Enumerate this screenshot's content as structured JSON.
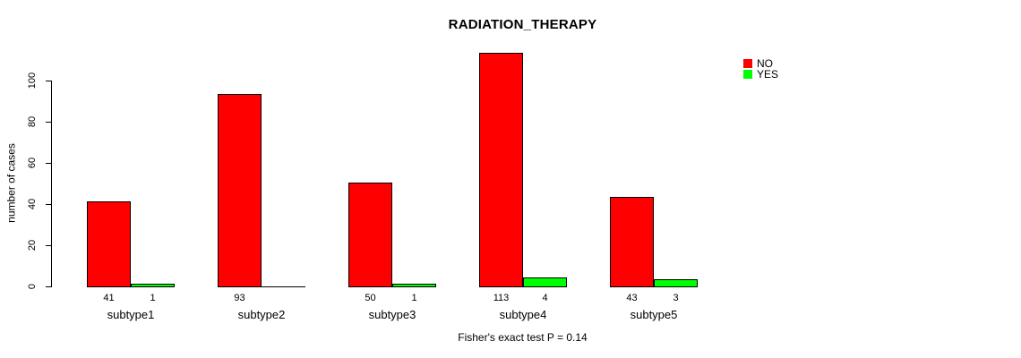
{
  "chart_data": {
    "type": "bar",
    "title": "RADIATION_THERAPY",
    "ylabel": "number of cases",
    "xlabel": "",
    "footnote": "Fisher's exact test P = 0.14",
    "categories": [
      "subtype1",
      "subtype2",
      "subtype3",
      "subtype4",
      "subtype5"
    ],
    "series": [
      {
        "name": "NO",
        "color": "#ff0000",
        "values": [
          41,
          93,
          50,
          113,
          43
        ]
      },
      {
        "name": "YES",
        "color": "#00ff00",
        "values": [
          1,
          0,
          1,
          4,
          3
        ]
      }
    ],
    "bar_value_labels": [
      [
        "41",
        "1"
      ],
      [
        "93",
        ""
      ],
      [
        "50",
        "1"
      ],
      [
        "113",
        "4"
      ],
      [
        "43",
        "3"
      ]
    ],
    "yticks": [
      0,
      20,
      40,
      60,
      80,
      100
    ],
    "ylim": [
      0,
      113
    ],
    "grid": false,
    "legend": {
      "position": "top-right",
      "entries": [
        {
          "label": "NO",
          "color": "#ff0000"
        },
        {
          "label": "YES",
          "color": "#00ff00"
        }
      ]
    }
  }
}
